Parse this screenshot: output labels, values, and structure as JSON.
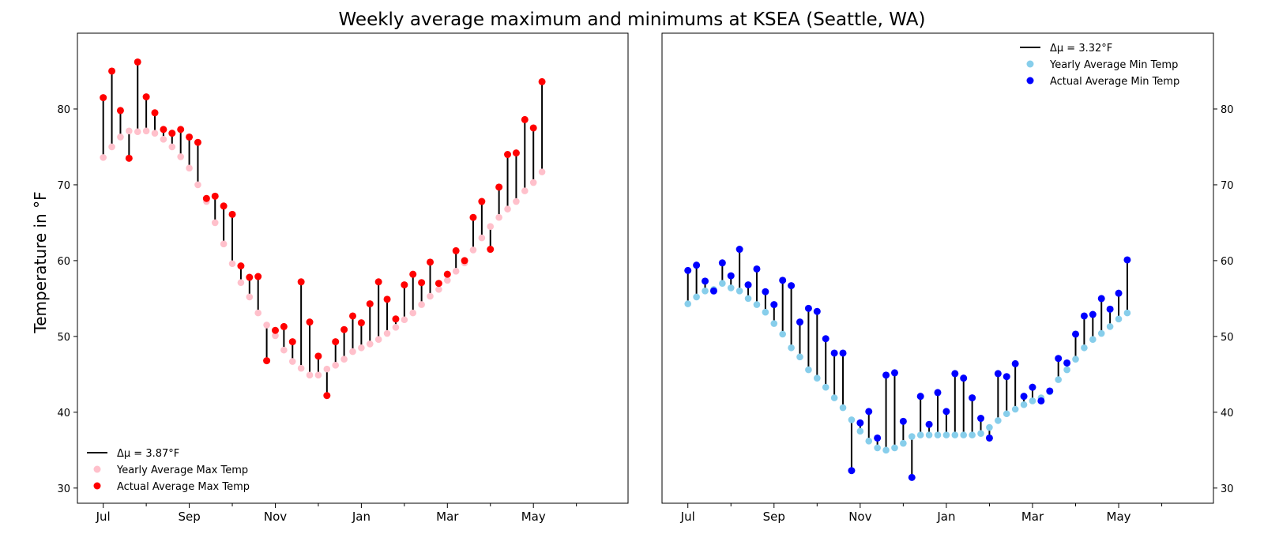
{
  "figure": {
    "title": "Weekly average maximum and minimums at KSEA (Seattle, WA)"
  },
  "chart_data": [
    {
      "type": "scatter",
      "panel": "left",
      "ylabel": "Temperature in °F",
      "y_axis_side": "left",
      "ylim": [
        28,
        90
      ],
      "yticks": [
        30,
        40,
        50,
        60,
        70,
        80
      ],
      "xlim": [
        -3,
        61
      ],
      "x_major_ticks": [
        0,
        10,
        20,
        30,
        40,
        50
      ],
      "x_tick_labels": [
        "Jul",
        "Sep",
        "Nov",
        "Jan",
        "Mar",
        "May"
      ],
      "x_minor_ticks": [
        5,
        15,
        25,
        35,
        45,
        55
      ],
      "legend": {
        "placement": "lower-left",
        "entries": [
          {
            "kind": "line",
            "label": "Δμ = 3.87°F",
            "color": "#000000"
          },
          {
            "kind": "marker",
            "label": "Yearly Average Max Temp",
            "color": "#ffc0cb"
          },
          {
            "kind": "marker",
            "label": "Actual Average Max Temp",
            "color": "#ff0000"
          }
        ]
      },
      "series": [
        {
          "name": "Yearly Average Max Temp",
          "color": "#ffc0cb",
          "values": [
            73.6,
            75.0,
            76.3,
            77.1,
            77.0,
            77.1,
            76.8,
            76.0,
            75.0,
            73.7,
            72.2,
            70.0,
            67.8,
            65.0,
            62.2,
            59.6,
            57.1,
            55.2,
            53.1,
            51.5,
            50.1,
            48.2,
            46.7,
            45.8,
            44.9,
            44.9,
            45.7,
            46.2,
            47.0,
            48.0,
            48.5,
            49.0,
            49.6,
            50.4,
            51.2,
            52.2,
            53.1,
            54.2,
            55.3,
            56.2,
            57.4,
            58.6,
            59.7,
            61.4,
            63.0,
            64.5,
            65.7,
            66.8,
            67.8,
            69.2,
            70.3,
            71.7
          ]
        },
        {
          "name": "Actual Average Max Temp",
          "color": "#ff0000",
          "values": [
            81.5,
            85.0,
            79.8,
            73.5,
            86.2,
            81.6,
            79.5,
            77.3,
            76.8,
            77.3,
            76.3,
            75.6,
            68.2,
            68.5,
            67.2,
            66.1,
            59.3,
            57.8,
            57.9,
            46.8,
            50.8,
            51.3,
            49.3,
            57.2,
            51.9,
            47.4,
            42.2,
            49.3,
            50.9,
            52.7,
            51.8,
            54.3,
            57.2,
            54.9,
            52.3,
            56.8,
            58.2,
            57.1,
            59.8,
            57.0,
            58.2,
            61.3,
            60.0,
            65.7,
            67.8,
            61.5,
            69.7,
            74.0,
            74.2,
            78.6,
            77.5,
            83.6
          ]
        }
      ]
    },
    {
      "type": "scatter",
      "panel": "right",
      "y_axis_side": "right",
      "ylim": [
        28,
        90
      ],
      "yticks": [
        30,
        40,
        50,
        60,
        70,
        80
      ],
      "xlim": [
        -3,
        61
      ],
      "x_major_ticks": [
        0,
        10,
        20,
        30,
        40,
        50
      ],
      "x_tick_labels": [
        "Jul",
        "Sep",
        "Nov",
        "Jan",
        "Mar",
        "May"
      ],
      "x_minor_ticks": [
        5,
        15,
        25,
        35,
        45,
        55
      ],
      "legend": {
        "placement": "top-right",
        "entries": [
          {
            "kind": "line",
            "label": "Δμ = 3.32°F",
            "color": "#000000"
          },
          {
            "kind": "marker",
            "label": "Yearly Average Min Temp",
            "color": "#87ceeb"
          },
          {
            "kind": "marker",
            "label": "Actual Average Min Temp",
            "color": "#0000ff"
          }
        ]
      },
      "series": [
        {
          "name": "Yearly Average Min Temp",
          "color": "#87ceeb",
          "values": [
            54.3,
            55.2,
            56.0,
            56.2,
            57.0,
            56.4,
            56.0,
            55.0,
            54.2,
            53.2,
            51.7,
            50.3,
            48.5,
            47.3,
            45.6,
            44.5,
            43.3,
            41.9,
            40.6,
            39.0,
            37.5,
            36.2,
            35.3,
            35.0,
            35.3,
            35.9,
            36.8,
            37.0,
            37.0,
            37.0,
            37.0,
            37.0,
            37.0,
            37.0,
            37.2,
            38.0,
            38.9,
            39.8,
            40.4,
            41.0,
            41.5,
            41.9,
            42.7,
            44.3,
            45.6,
            47.0,
            48.5,
            49.6,
            50.4,
            51.3,
            52.3,
            53.1
          ]
        },
        {
          "name": "Actual Average Min Temp",
          "color": "#0000ff",
          "values": [
            58.7,
            59.4,
            57.3,
            56.0,
            59.7,
            58.0,
            61.5,
            56.8,
            58.9,
            55.9,
            54.2,
            57.4,
            56.7,
            51.9,
            53.7,
            53.3,
            49.7,
            47.8,
            47.8,
            32.3,
            38.6,
            40.1,
            36.6,
            44.9,
            45.2,
            38.8,
            31.4,
            42.1,
            38.4,
            42.6,
            40.1,
            45.1,
            44.5,
            41.9,
            39.2,
            36.6,
            45.1,
            44.7,
            46.4,
            42.1,
            43.3,
            41.5,
            42.8,
            47.1,
            46.5,
            50.3,
            52.7,
            52.9,
            55.0,
            53.6,
            55.7,
            60.1
          ]
        }
      ]
    }
  ]
}
